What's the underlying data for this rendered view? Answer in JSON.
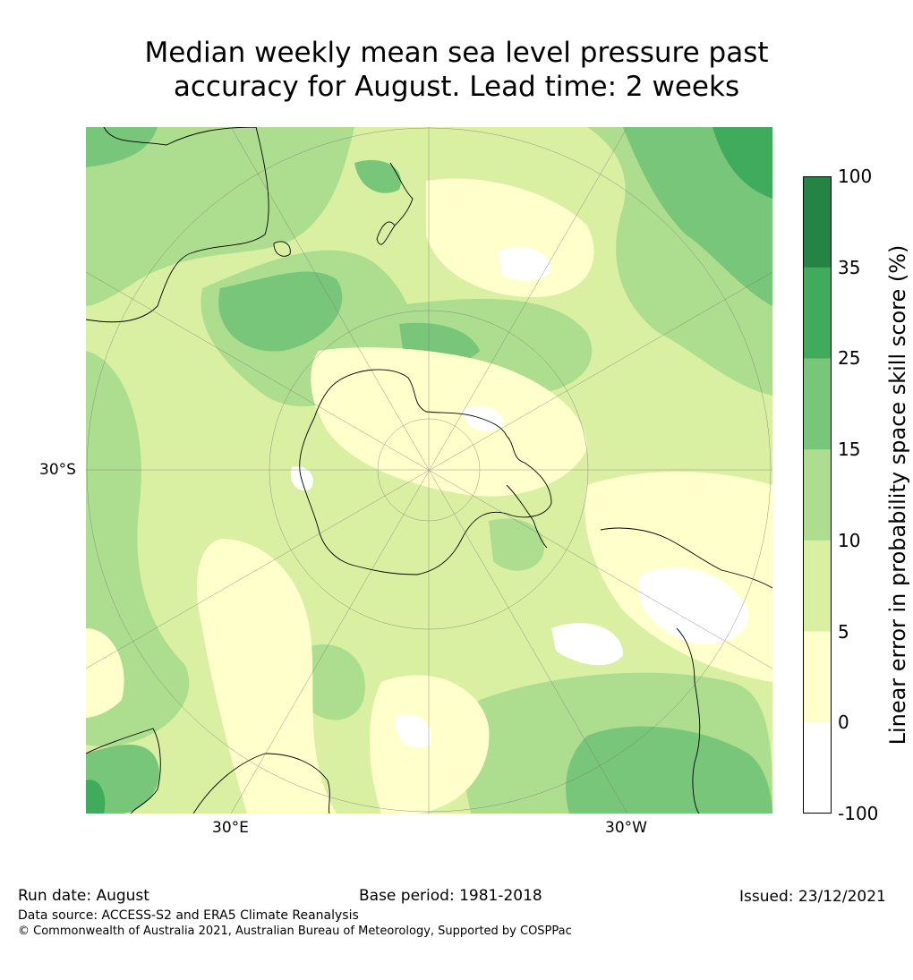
{
  "title": {
    "line1": "Median weekly mean sea level pressure past",
    "line2": "accuracy for August. Lead time: 2 weeks"
  },
  "map": {
    "projection": "south-polar-stereographic",
    "axis_labels": {
      "left": "30°S",
      "bottom_left": "30°E",
      "bottom_right": "30°W"
    },
    "landmasses": [
      "Antarctica",
      "Australia",
      "New Zealand",
      "South America",
      "Africa"
    ]
  },
  "colorbar": {
    "title": "Linear error in probability space skill score (%)",
    "levels": [
      {
        "label": "100",
        "color": "#238443"
      },
      {
        "label": "35",
        "color": "#41ab5d"
      },
      {
        "label": "25",
        "color": "#78c679"
      },
      {
        "label": "15",
        "color": "#addd8e"
      },
      {
        "label": "10",
        "color": "#d9f0a3"
      },
      {
        "label": "5",
        "color": "#ffffcc"
      },
      {
        "label": "0",
        "color": "#ffffff"
      },
      {
        "label": "-100",
        "color": "#ffffff"
      }
    ]
  },
  "footer": {
    "run_date": "Run date: August",
    "base_period": "Base period: 1981-2018",
    "issued": "Issued: 23/12/2021",
    "data_source": "Data source: ACCESS-S2 and ERA5 Climate Reanalysis",
    "copyright": "© Commonwealth of Australia 2021, Australian Bureau of Meteorology, Supported by COSPPac"
  }
}
